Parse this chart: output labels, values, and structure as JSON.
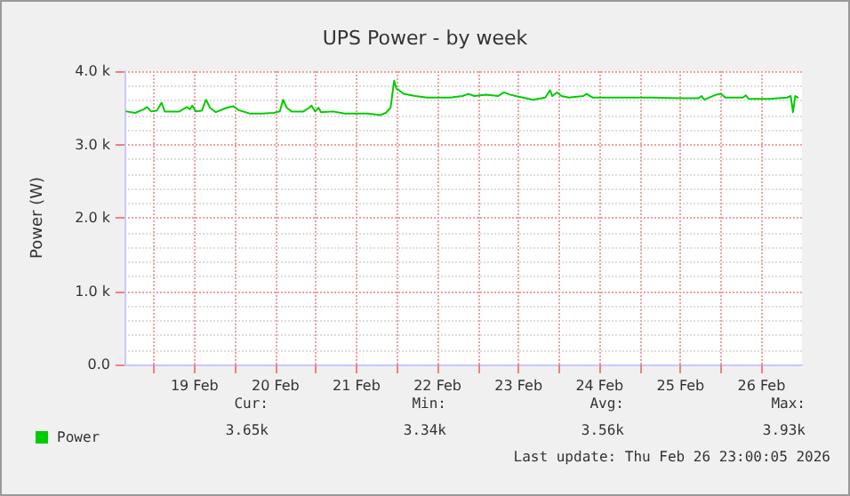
{
  "chart_data": {
    "type": "line",
    "title": "UPS Power - by week",
    "ylabel": "Power (W)",
    "xlim": [
      "2026-02-18T15:15",
      "2026-02-27T00:00"
    ],
    "xticks": [
      {
        "value": "2026-02-19T00:00",
        "label": null
      },
      {
        "value": "2026-02-19T12:00",
        "label": "19 Feb"
      },
      {
        "value": "2026-02-20T00:00",
        "label": null
      },
      {
        "value": "2026-02-20T12:00",
        "label": "20 Feb"
      },
      {
        "value": "2026-02-21T00:00",
        "label": null
      },
      {
        "value": "2026-02-21T12:00",
        "label": "21 Feb"
      },
      {
        "value": "2026-02-22T00:00",
        "label": null
      },
      {
        "value": "2026-02-22T12:00",
        "label": "22 Feb"
      },
      {
        "value": "2026-02-23T00:00",
        "label": null
      },
      {
        "value": "2026-02-23T12:00",
        "label": "23 Feb"
      },
      {
        "value": "2026-02-24T00:00",
        "label": null
      },
      {
        "value": "2026-02-24T12:00",
        "label": "24 Feb"
      },
      {
        "value": "2026-02-25T00:00",
        "label": null
      },
      {
        "value": "2026-02-25T12:00",
        "label": "25 Feb"
      },
      {
        "value": "2026-02-26T00:00",
        "label": null
      },
      {
        "value": "2026-02-26T12:00",
        "label": "26 Feb"
      }
    ],
    "ylim": [
      0,
      4000
    ],
    "yticks": [
      {
        "value": 0,
        "label": "0.0"
      },
      {
        "value": 1000,
        "label": "1.0 k"
      },
      {
        "value": 2000,
        "label": "2.0 k"
      },
      {
        "value": 3000,
        "label": "3.0 k"
      },
      {
        "value": 4000,
        "label": "4.0 k"
      }
    ],
    "grid": true,
    "legend": "bottom left",
    "marker": "none",
    "line_style": "solid",
    "series": [
      {
        "name": "Power",
        "color": "#00cc00",
        "x": [
          "2026-02-18T15:50",
          "2026-02-18T18:25",
          "2026-02-18T21:00",
          "2026-02-18T21:55",
          "2026-02-18T23:10",
          "2026-02-19T00:50",
          "2026-02-19T02:15",
          "2026-02-19T03:10",
          "2026-02-19T07:30",
          "2026-02-19T09:45",
          "2026-02-19T10:40",
          "2026-02-19T11:20",
          "2026-02-19T12:25",
          "2026-02-19T14:10",
          "2026-02-19T15:25",
          "2026-02-19T16:35",
          "2026-02-19T18:20",
          "2026-02-19T21:30",
          "2026-02-19T23:35",
          "2026-02-20T01:00",
          "2026-02-20T04:30",
          "2026-02-20T08:00",
          "2026-02-20T11:30",
          "2026-02-20T13:15",
          "2026-02-20T14:15",
          "2026-02-20T15:20",
          "2026-02-20T16:45",
          "2026-02-20T20:15",
          "2026-02-20T22:00",
          "2026-02-20T22:40",
          "2026-02-20T23:45",
          "2026-02-21T00:45",
          "2026-02-21T01:30",
          "2026-02-21T05:00",
          "2026-02-21T08:30",
          "2026-02-21T12:00",
          "2026-02-21T15:30",
          "2026-02-21T19:00",
          "2026-02-21T20:40",
          "2026-02-21T22:05",
          "2026-02-21T23:10",
          "2026-02-21T23:50",
          "2026-02-22T00:35",
          "2026-02-22T01:55",
          "2026-02-22T05:25",
          "2026-02-22T08:55",
          "2026-02-22T15:55",
          "2026-02-22T19:25",
          "2026-02-22T21:10",
          "2026-02-22T22:55",
          "2026-02-23T02:25",
          "2026-02-23T05:55",
          "2026-02-23T07:40",
          "2026-02-23T09:25",
          "2026-02-23T11:10",
          "2026-02-23T16:20",
          "2026-02-23T19:55",
          "2026-02-23T21:20",
          "2026-02-23T22:00",
          "2026-02-23T23:25",
          "2026-02-24T00:45",
          "2026-02-24T02:55",
          "2026-02-24T07:15",
          "2026-02-24T08:10",
          "2026-02-24T09:55",
          "2026-02-24T18:40",
          "2026-02-25T03:25",
          "2026-02-25T12:05",
          "2026-02-25T17:20",
          "2026-02-25T18:15",
          "2026-02-25T19:05",
          "2026-02-25T22:35",
          "2026-02-26T00:00",
          "2026-02-26T01:15",
          "2026-02-26T06:30",
          "2026-02-26T07:20",
          "2026-02-26T08:15",
          "2026-02-26T14:20",
          "2026-02-26T19:35",
          "2026-02-26T20:40",
          "2026-02-26T21:20",
          "2026-02-26T22:00",
          "2026-02-26T22:45"
        ],
        "values": [
          3450,
          3430,
          3480,
          3510,
          3450,
          3460,
          3570,
          3450,
          3450,
          3510,
          3480,
          3530,
          3450,
          3460,
          3610,
          3500,
          3440,
          3500,
          3520,
          3470,
          3420,
          3420,
          3430,
          3450,
          3610,
          3500,
          3450,
          3450,
          3500,
          3530,
          3450,
          3500,
          3440,
          3450,
          3420,
          3420,
          3420,
          3400,
          3430,
          3500,
          3870,
          3760,
          3740,
          3690,
          3660,
          3640,
          3640,
          3660,
          3690,
          3660,
          3680,
          3660,
          3710,
          3680,
          3660,
          3610,
          3640,
          3740,
          3660,
          3710,
          3660,
          3640,
          3660,
          3690,
          3640,
          3640,
          3640,
          3630,
          3630,
          3660,
          3610,
          3680,
          3690,
          3640,
          3640,
          3670,
          3620,
          3620,
          3640,
          3660,
          3440,
          3660,
          3640
        ]
      }
    ],
    "annotations": [
      "Cur:",
      "3.65k",
      "Min:",
      "3.34k",
      "Avg:",
      "3.56k",
      "Max:",
      "3.93k",
      "Last update: Thu Feb 26 23:00:05 2026"
    ]
  }
}
